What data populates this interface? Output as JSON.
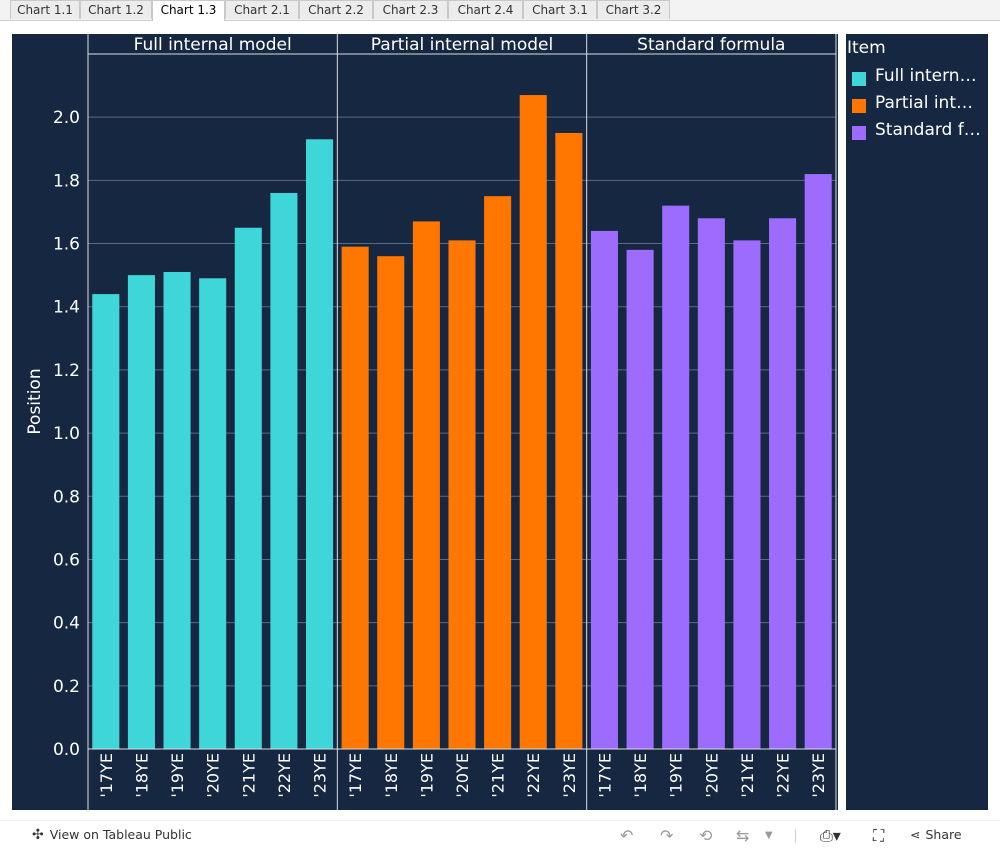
{
  "tabs": [
    {
      "label": "Chart 1.1",
      "active": false
    },
    {
      "label": "Chart 1.2",
      "active": false
    },
    {
      "label": "Chart 1.3",
      "active": true
    },
    {
      "label": "Chart 2.1",
      "active": false
    },
    {
      "label": "Chart 2.2",
      "active": false
    },
    {
      "label": "Chart 2.3",
      "active": false
    },
    {
      "label": "Chart 2.4",
      "active": false
    },
    {
      "label": "Chart 3.1",
      "active": false
    },
    {
      "label": "Chart 3.2",
      "active": false
    }
  ],
  "chart_data": {
    "type": "bar",
    "ylabel": "Position",
    "ylim": [
      0,
      2.2
    ],
    "yticks": [
      0.0,
      0.2,
      0.4,
      0.6,
      0.8,
      1.0,
      1.2,
      1.4,
      1.6,
      1.8,
      2.0
    ],
    "grid": true,
    "legend_placement": "right",
    "categories": [
      "'17YE",
      "'18YE",
      "'19YE",
      "'20YE",
      "'21YE",
      "'22YE",
      "'23YE"
    ],
    "panels": [
      {
        "name": "Full internal model",
        "color": "#3ed6d8",
        "values": [
          1.44,
          1.5,
          1.51,
          1.49,
          1.65,
          1.76,
          1.93
        ]
      },
      {
        "name": "Partial internal model",
        "color": "#ff7600",
        "values": [
          1.59,
          1.56,
          1.67,
          1.61,
          1.75,
          2.07,
          1.95
        ]
      },
      {
        "name": "Standard formula",
        "color": "#9d6cff",
        "values": [
          1.64,
          1.58,
          1.72,
          1.68,
          1.61,
          1.68,
          1.82
        ]
      }
    ]
  },
  "legend": {
    "title": "Item",
    "items": [
      {
        "label": "Full internal model",
        "color": "#3ed6d8"
      },
      {
        "label": "Partial internal model",
        "color": "#ff7600"
      },
      {
        "label": "Standard formula",
        "color": "#9d6cff"
      }
    ]
  },
  "footer": {
    "view_label": "View on Tableau Public",
    "share_label": "Share",
    "icons": [
      "tableau-icon",
      "undo-icon",
      "redo-icon",
      "revert-icon",
      "refresh-icon",
      "download-icon",
      "fullscreen-icon",
      "share-icon"
    ]
  }
}
